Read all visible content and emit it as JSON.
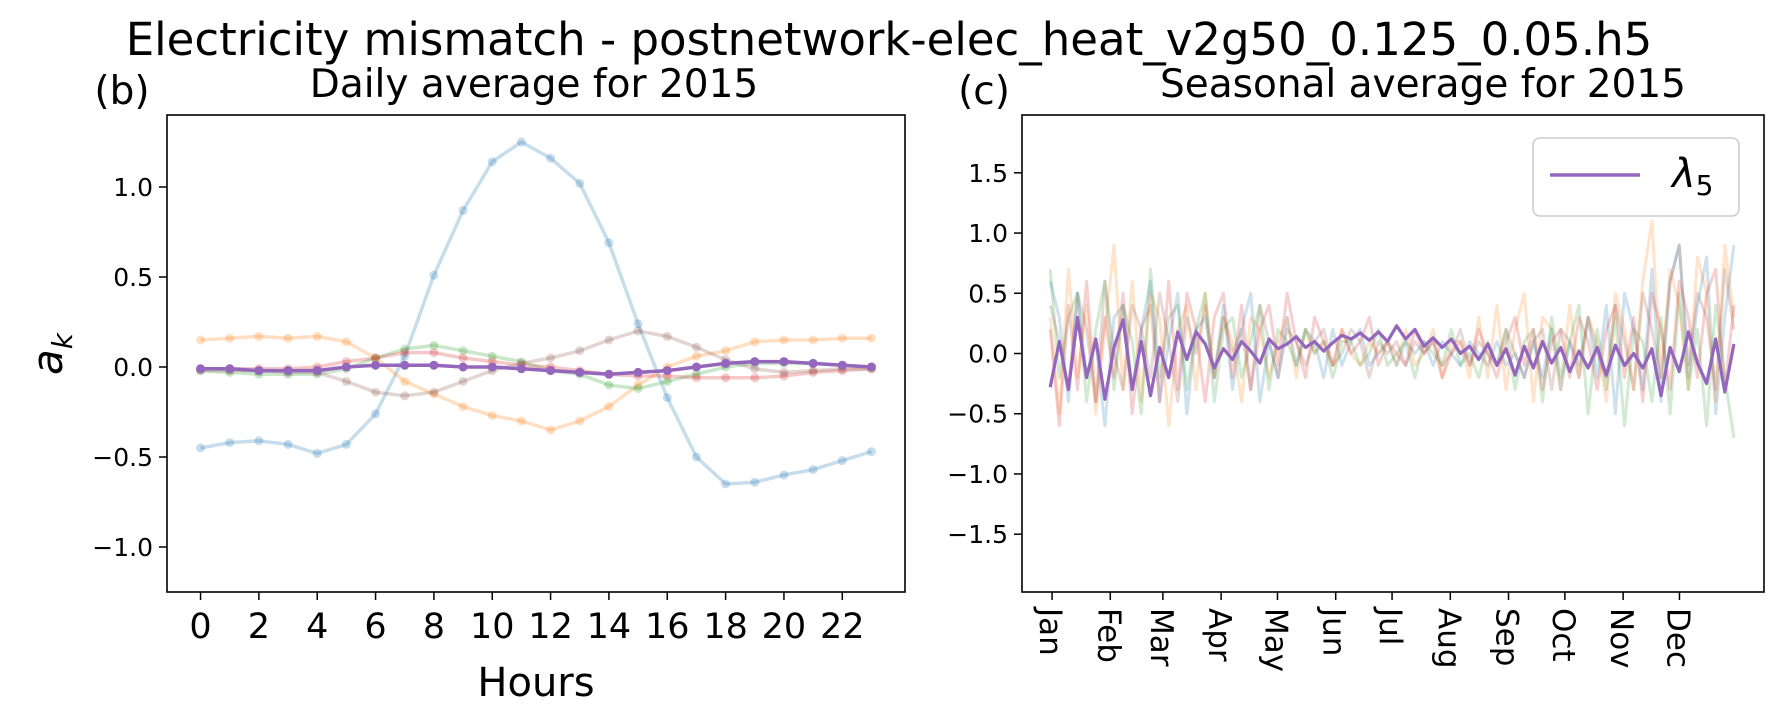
{
  "figure": {
    "title": "Electricity mismatch - postnetwork-elec_heat_v2g50_0.125_0.05.h5"
  },
  "chart_data": [
    {
      "type": "line",
      "panel_label": "(b)",
      "title": "Daily average for 2015",
      "xlabel": "Hours",
      "ylabel": "a_k",
      "ylabel_display": "a",
      "ylabel_sub": "k",
      "xlim": [
        -1.15,
        24.15
      ],
      "ylim": [
        -1.25,
        1.4
      ],
      "xticks": [
        0,
        2,
        4,
        6,
        8,
        10,
        12,
        14,
        16,
        18,
        20,
        22
      ],
      "yticks": [
        -1.0,
        -0.5,
        0.0,
        0.5,
        1.0
      ],
      "ytick_labels": [
        "−1.0",
        "−0.5",
        "0.0",
        "0.5",
        "1.0"
      ],
      "markers": true,
      "series": [
        {
          "color": "#1f77b4",
          "alpha": 0.25,
          "values": [
            -0.45,
            -0.42,
            -0.41,
            -0.43,
            -0.48,
            -0.43,
            -0.26,
            0.06,
            0.51,
            0.87,
            1.14,
            1.25,
            1.16,
            1.02,
            0.69,
            0.24,
            -0.17,
            -0.5,
            -0.65,
            -0.64,
            -0.6,
            -0.57,
            -0.52,
            -0.47
          ]
        },
        {
          "color": "#ff7f0e",
          "alpha": 0.25,
          "values": [
            0.15,
            0.16,
            0.17,
            0.16,
            0.17,
            0.14,
            0.05,
            -0.08,
            -0.15,
            -0.22,
            -0.27,
            -0.3,
            -0.35,
            -0.3,
            -0.22,
            -0.1,
            0.0,
            0.06,
            0.09,
            0.14,
            0.15,
            0.15,
            0.16,
            0.16
          ]
        },
        {
          "color": "#2ca02c",
          "alpha": 0.25,
          "values": [
            -0.02,
            -0.03,
            -0.04,
            -0.04,
            -0.04,
            -0.01,
            0.05,
            0.1,
            0.12,
            0.09,
            0.06,
            0.03,
            -0.02,
            -0.04,
            -0.1,
            -0.12,
            -0.08,
            -0.04,
            0.0,
            0.02,
            0.02,
            0.02,
            0.01,
            0.0
          ]
        },
        {
          "color": "#d62728",
          "alpha": 0.25,
          "values": [
            -0.01,
            -0.01,
            -0.01,
            -0.01,
            0.0,
            0.03,
            0.05,
            0.08,
            0.08,
            0.05,
            0.03,
            0.01,
            0.0,
            -0.02,
            -0.04,
            -0.05,
            -0.05,
            -0.06,
            -0.06,
            -0.06,
            -0.05,
            -0.03,
            -0.02,
            -0.01
          ]
        },
        {
          "color": "#8c564b",
          "alpha": 0.25,
          "values": [
            -0.02,
            -0.02,
            -0.02,
            -0.03,
            -0.03,
            -0.08,
            -0.14,
            -0.16,
            -0.14,
            -0.08,
            -0.02,
            0.02,
            0.05,
            0.09,
            0.15,
            0.2,
            0.17,
            0.11,
            0.04,
            -0.01,
            -0.03,
            -0.02,
            -0.01,
            -0.01
          ]
        },
        {
          "color": "#9467bd",
          "alpha": 1.0,
          "highlight": true,
          "values": [
            -0.01,
            -0.01,
            -0.02,
            -0.02,
            -0.02,
            0.0,
            0.01,
            0.01,
            0.01,
            0.0,
            0.0,
            -0.01,
            -0.02,
            -0.03,
            -0.04,
            -0.03,
            -0.02,
            0.0,
            0.02,
            0.03,
            0.03,
            0.02,
            0.01,
            0.0
          ]
        }
      ]
    },
    {
      "type": "line",
      "panel_label": "(c)",
      "title": "Seasonal average for 2015",
      "xlim": [
        -15,
        380
      ],
      "ylim": [
        -1.98,
        1.98
      ],
      "yticks": [
        -1.5,
        -1.0,
        -0.5,
        0.0,
        0.5,
        1.0,
        1.5
      ],
      "ytick_labels": [
        "−1.5",
        "−1.0",
        "−0.5",
        "0.0",
        "0.5",
        "1.0",
        "1.5"
      ],
      "xticks": [
        1,
        32,
        60,
        91,
        121,
        152,
        182,
        213,
        244,
        274,
        305,
        335
      ],
      "xtick_labels": [
        "Jan",
        "Feb",
        "Mar",
        "Apr",
        "May",
        "Jun",
        "Jul",
        "Aug",
        "Sep",
        "Oct",
        "Nov",
        "Dec"
      ],
      "legend": {
        "label": "λ",
        "label_sub": "5",
        "color": "#9467bd",
        "placement": "upper right"
      },
      "series": [
        {
          "color": "#1f77b4",
          "alpha": 0.22,
          "values": [
            0.6,
            0.3,
            -0.4,
            0.5,
            -0.2,
            0.1,
            -0.6,
            0.3,
            0.4,
            -0.3,
            0.2,
            0.6,
            -0.4,
            0.1,
            0.5,
            -0.5,
            0.2,
            0.3,
            -0.2,
            0.4,
            -0.3,
            0.2,
            0.5,
            -0.4,
            0.1,
            -0.2,
            0.3,
            -0.1,
            0.2,
            0.1,
            -0.2,
            0.2,
            -0.1,
            0.1,
            0.2,
            -0.1,
            0.0,
            0.1,
            -0.1,
            0.1,
            0.0,
            0.1,
            -0.1,
            0.1,
            0.0,
            -0.1,
            0.1,
            0.0,
            -0.1,
            0.1,
            -0.1,
            0.0,
            -0.2,
            0.1,
            -0.2,
            0.2,
            -0.3,
            0.1,
            -0.1,
            0.3,
            -0.2,
            0.4,
            -0.5,
            0.5,
            0.2,
            -0.3,
            0.7,
            -0.4,
            0.6,
            0.9,
            -0.2,
            0.4,
            0.8,
            -0.5,
            0.3,
            0.9
          ]
        },
        {
          "color": "#ff7f0e",
          "alpha": 0.22,
          "values": [
            0.3,
            -0.5,
            0.7,
            -0.2,
            0.4,
            -0.5,
            0.2,
            0.9,
            -0.3,
            0.6,
            -0.4,
            0.5,
            0.3,
            -0.6,
            0.2,
            0.4,
            -0.3,
            0.5,
            -0.2,
            0.3,
            0.1,
            -0.4,
            0.3,
            0.2,
            -0.2,
            0.1,
            0.3,
            -0.2,
            0.2,
            0.0,
            0.1,
            -0.1,
            0.2,
            0.0,
            -0.1,
            0.1,
            0.0,
            0.1,
            -0.1,
            0.2,
            -0.1,
            0.0,
            0.2,
            -0.2,
            0.1,
            0.1,
            -0.2,
            0.3,
            -0.2,
            0.4,
            -0.3,
            0.2,
            0.5,
            -0.4,
            0.3,
            0.2,
            -0.3,
            0.4,
            -0.2,
            0.3,
            0.1,
            -0.4,
            0.5,
            0.2,
            -0.3,
            0.6,
            1.1,
            -0.2,
            0.7,
            0.4,
            -0.3,
            0.8,
            0.5,
            -0.4,
            0.9,
            0.3
          ]
        },
        {
          "color": "#2ca02c",
          "alpha": 0.22,
          "values": [
            0.7,
            -0.2,
            0.3,
            0.5,
            -0.4,
            0.2,
            0.6,
            -0.3,
            0.4,
            0.1,
            -0.5,
            0.7,
            -0.2,
            0.3,
            0.4,
            -0.3,
            0.2,
            0.5,
            -0.4,
            0.2,
            0.3,
            -0.2,
            0.1,
            0.4,
            -0.3,
            0.2,
            0.1,
            -0.1,
            0.2,
            0.0,
            0.1,
            -0.2,
            0.1,
            0.1,
            -0.1,
            0.0,
            0.2,
            -0.1,
            0.0,
            0.1,
            -0.2,
            0.1,
            0.0,
            -0.1,
            0.2,
            -0.1,
            0.0,
            -0.2,
            0.1,
            -0.1,
            0.2,
            -0.3,
            0.1,
            0.2,
            -0.4,
            0.3,
            -0.2,
            0.1,
            0.4,
            -0.5,
            0.2,
            -0.3,
            0.3,
            -0.6,
            0.2,
            0.1,
            -0.4,
            0.3,
            -0.5,
            0.5,
            -0.3,
            0.2,
            -0.6,
            0.4,
            -0.2,
            -0.7
          ]
        },
        {
          "color": "#d62728",
          "alpha": 0.22,
          "values": [
            0.2,
            -0.6,
            0.4,
            -0.3,
            0.6,
            -0.4,
            0.3,
            -0.2,
            0.5,
            -0.5,
            0.2,
            0.4,
            -0.4,
            0.6,
            -0.3,
            0.5,
            0.2,
            -0.4,
            0.3,
            0.5,
            -0.2,
            0.4,
            -0.3,
            0.2,
            0.4,
            -0.1,
            0.5,
            0.1,
            -0.2,
            0.3,
            0.1,
            -0.1,
            0.2,
            0.0,
            0.1,
            0.3,
            -0.1,
            0.1,
            0.0,
            -0.1,
            0.2,
            0.0,
            0.1,
            -0.2,
            0.0,
            0.1,
            -0.1,
            0.2,
            0.0,
            -0.2,
            0.1,
            0.3,
            -0.1,
            0.2,
            -0.3,
            0.1,
            0.2,
            -0.2,
            0.3,
            0.1,
            -0.3,
            0.2,
            0.4,
            -0.2,
            0.3,
            -0.4,
            0.5,
            0.2,
            -0.3,
            0.6,
            0.3,
            -0.2,
            0.5,
            0.7,
            -0.3,
            0.4
          ]
        },
        {
          "color": "#8c564b",
          "alpha": 0.22,
          "values": [
            0.4,
            0.1,
            -0.3,
            0.5,
            0.2,
            -0.4,
            0.6,
            0.0,
            -0.3,
            0.4,
            0.2,
            -0.2,
            0.5,
            0.1,
            -0.4,
            0.3,
            0.0,
            0.4,
            -0.2,
            0.3,
            0.0,
            0.2,
            -0.3,
            0.4,
            0.1,
            -0.2,
            0.2,
            0.1,
            -0.1,
            0.1,
            0.2,
            -0.1,
            0.0,
            0.2,
            0.1,
            -0.2,
            0.1,
            0.0,
            0.1,
            -0.1,
            0.1,
            0.0,
            0.1,
            -0.1,
            0.0,
            0.2,
            -0.1,
            0.1,
            0.0,
            -0.1,
            0.2,
            0.0,
            -0.2,
            0.1,
            0.2,
            -0.3,
            0.2,
            0.1,
            -0.2,
            0.3,
            0.0,
            -0.2,
            0.4,
            0.1,
            -0.3,
            0.5,
            0.2,
            -0.2,
            0.6,
            0.9,
            -0.1,
            0.5,
            0.3,
            -0.3,
            0.7,
            0.2
          ]
        },
        {
          "color": "#9467bd",
          "alpha": 1.0,
          "highlight": true,
          "values": [
            -0.28,
            0.1,
            -0.3,
            0.3,
            -0.2,
            0.12,
            -0.38,
            0.05,
            0.28,
            -0.3,
            0.1,
            -0.35,
            0.05,
            -0.2,
            0.18,
            -0.05,
            0.18,
            0.08,
            -0.12,
            0.04,
            -0.05,
            0.1,
            0.02,
            -0.08,
            0.12,
            0.04,
            0.08,
            0.14,
            0.05,
            0.1,
            0.02,
            0.09,
            0.15,
            0.12,
            0.17,
            0.11,
            0.18,
            0.1,
            0.23,
            0.12,
            0.2,
            0.06,
            0.13,
            0.05,
            0.12,
            0.0,
            0.06,
            -0.05,
            0.08,
            -0.1,
            0.04,
            -0.18,
            0.06,
            -0.12,
            0.1,
            -0.08,
            0.05,
            -0.15,
            0.02,
            -0.12,
            0.05,
            -0.18,
            0.07,
            -0.1,
            0.0,
            -0.12,
            0.04,
            -0.35,
            0.05,
            -0.15,
            0.18,
            -0.08,
            -0.25,
            0.12,
            -0.32,
            0.08
          ]
        }
      ]
    }
  ]
}
